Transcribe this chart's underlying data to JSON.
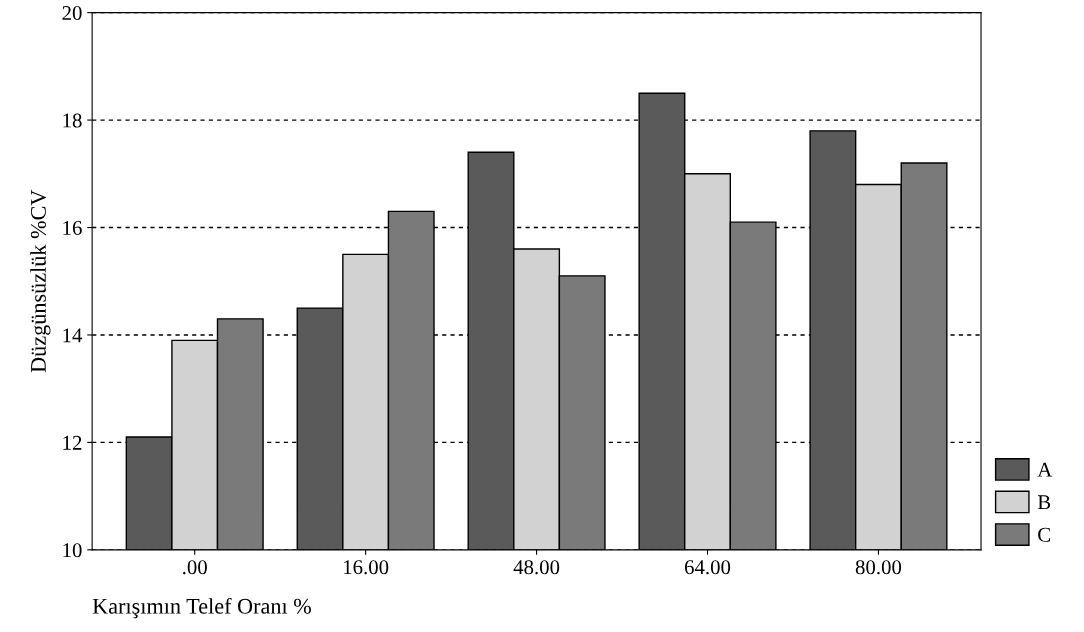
{
  "chart_data": {
    "type": "bar",
    "xlabel": "Karışımın Telef Oranı %",
    "ylabel": "Düzgünsüzlük %CV",
    "categories": [
      ".00",
      "16.00",
      "48.00",
      "64.00",
      "80.00"
    ],
    "series": [
      {
        "name": "A",
        "color": "#5a5a5a",
        "values": [
          12.1,
          14.5,
          17.4,
          18.5,
          17.8
        ]
      },
      {
        "name": "B",
        "color": "#d2d2d2",
        "values": [
          13.9,
          15.5,
          15.6,
          17.0,
          16.8
        ]
      },
      {
        "name": "C",
        "color": "#7a7a7a",
        "values": [
          14.3,
          16.3,
          15.1,
          16.1,
          17.2
        ]
      }
    ],
    "ylim": [
      10,
      20
    ],
    "yticks": [
      10,
      12,
      14,
      16,
      18,
      20
    ],
    "grid": "y",
    "legend": "bottom right"
  }
}
